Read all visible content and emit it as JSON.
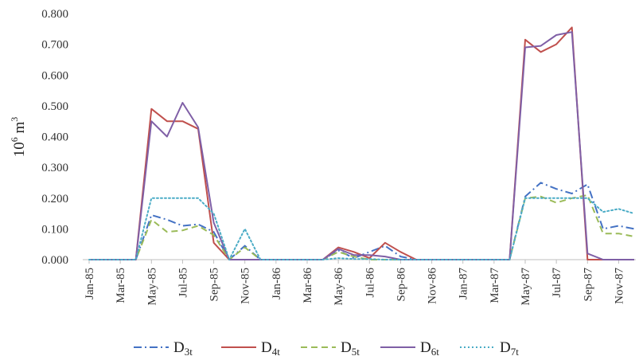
{
  "chart_data": {
    "type": "line",
    "ylabel": "10",
    "ylabel_sup": "6",
    "ylabel_unit": "m",
    "ylabel_unit_sup": "3",
    "ylim": [
      0,
      0.8
    ],
    "yticks": [
      "0.000",
      "0.100",
      "0.200",
      "0.300",
      "0.400",
      "0.500",
      "0.600",
      "0.700",
      "0.800"
    ],
    "categories": [
      "Jan-85",
      "Feb-85",
      "Mar-85",
      "Apr-85",
      "May-85",
      "Jun-85",
      "Jul-85",
      "Aug-85",
      "Sep-85",
      "Oct-85",
      "Nov-85",
      "Dec-85",
      "Jan-86",
      "Feb-86",
      "Mar-86",
      "Apr-86",
      "May-86",
      "Jun-86",
      "Jul-86",
      "Aug-86",
      "Sep-86",
      "Oct-86",
      "Nov-86",
      "Dec-86",
      "Jan-87",
      "Feb-87",
      "Mar-87",
      "Apr-87",
      "May-87",
      "Jun-87",
      "Jul-87",
      "Aug-87",
      "Sep-87",
      "Oct-87",
      "Nov-87",
      "Dec-87"
    ],
    "xtick_labels": [
      "Jan-85",
      "Mar-85",
      "May-85",
      "Jul-85",
      "Sep-85",
      "Nov-85",
      "Jan-86",
      "Mar-86",
      "May-86",
      "Jul-86",
      "Sep-86",
      "Nov-86",
      "Jan-87",
      "Mar-87",
      "May-87",
      "Jul-87",
      "Sep-87",
      "Nov-87"
    ],
    "grid": false,
    "legend_position": "bottom",
    "series": [
      {
        "name": "D",
        "sub": "3t",
        "color": "#4472c4",
        "dash": "dashdot",
        "values": [
          0,
          0,
          0,
          0,
          0.145,
          0.13,
          0.11,
          0.115,
          0.09,
          0,
          0.045,
          0,
          0,
          0,
          0,
          0,
          0.03,
          0.005,
          0.025,
          0.045,
          0.01,
          0,
          0,
          0,
          0,
          0,
          0,
          0,
          0.205,
          0.25,
          0.23,
          0.215,
          0.245,
          0.1,
          0.11,
          0.1
        ]
      },
      {
        "name": "D",
        "sub": "4t",
        "color": "#c0504d",
        "dash": "solid",
        "values": [
          0,
          0,
          0,
          0,
          0.49,
          0.45,
          0.45,
          0.425,
          0.055,
          0,
          0,
          0,
          0,
          0,
          0,
          0,
          0.04,
          0.025,
          0.005,
          0.055,
          0.025,
          0,
          0,
          0,
          0,
          0,
          0,
          0,
          0.715,
          0.675,
          0.7,
          0.755,
          0,
          0,
          0,
          0
        ]
      },
      {
        "name": "D",
        "sub": "5t",
        "color": "#9bbb59",
        "dash": "dash",
        "values": [
          0,
          0,
          0,
          0,
          0.13,
          0.09,
          0.095,
          0.11,
          0.08,
          0,
          0.04,
          0,
          0,
          0,
          0,
          0,
          0.025,
          0.01,
          0,
          0,
          0,
          0,
          0,
          0,
          0,
          0,
          0,
          0,
          0.2,
          0.205,
          0.185,
          0.2,
          0.21,
          0.085,
          0.085,
          0.075
        ]
      },
      {
        "name": "D",
        "sub": "6t",
        "color": "#7f5fa6",
        "dash": "solid",
        "values": [
          0,
          0,
          0,
          0,
          0.45,
          0.4,
          0.51,
          0.43,
          0.12,
          0,
          0,
          0,
          0,
          0,
          0,
          0,
          0.035,
          0.015,
          0.015,
          0.01,
          0,
          0,
          0,
          0,
          0,
          0,
          0,
          0,
          0.69,
          0.695,
          0.73,
          0.74,
          0.02,
          0,
          0,
          0
        ]
      },
      {
        "name": "D",
        "sub": "7t",
        "color": "#4bacc6",
        "dash": "dot",
        "values": [
          0,
          0,
          0,
          0,
          0.2,
          0.2,
          0.2,
          0.2,
          0.15,
          0,
          0.1,
          0,
          0,
          0,
          0,
          0,
          0.005,
          0.002,
          0.002,
          0,
          0,
          0,
          0,
          0,
          0,
          0,
          0,
          0,
          0.2,
          0.2,
          0.2,
          0.2,
          0.2,
          0.155,
          0.165,
          0.15
        ]
      }
    ]
  }
}
